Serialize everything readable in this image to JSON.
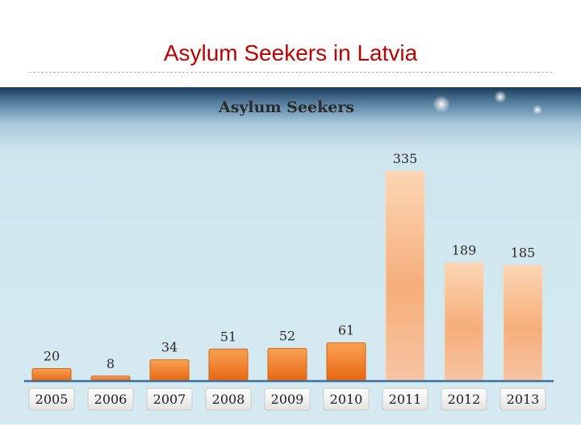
{
  "slide": {
    "title": "Asylum Seekers in Latvia"
  },
  "chart_data": {
    "type": "bar",
    "title": "Asylum Seekers",
    "xlabel": "",
    "ylabel": "",
    "categories": [
      "2005",
      "2006",
      "2007",
      "2008",
      "2009",
      "2010",
      "2011",
      "2012",
      "2013"
    ],
    "values": [
      20,
      8,
      34,
      51,
      52,
      61,
      335,
      189,
      185
    ],
    "ylim": [
      0,
      335
    ],
    "grid": false,
    "legend": "none",
    "data_labels": [
      "20",
      "8",
      "34",
      "51",
      "52",
      "61",
      "335",
      "189",
      "185"
    ],
    "colors": {
      "bar_low": "#f07a18",
      "bar_high": "#f8c9a8",
      "axis": "#3a6fa0",
      "title": "#c00000"
    }
  }
}
